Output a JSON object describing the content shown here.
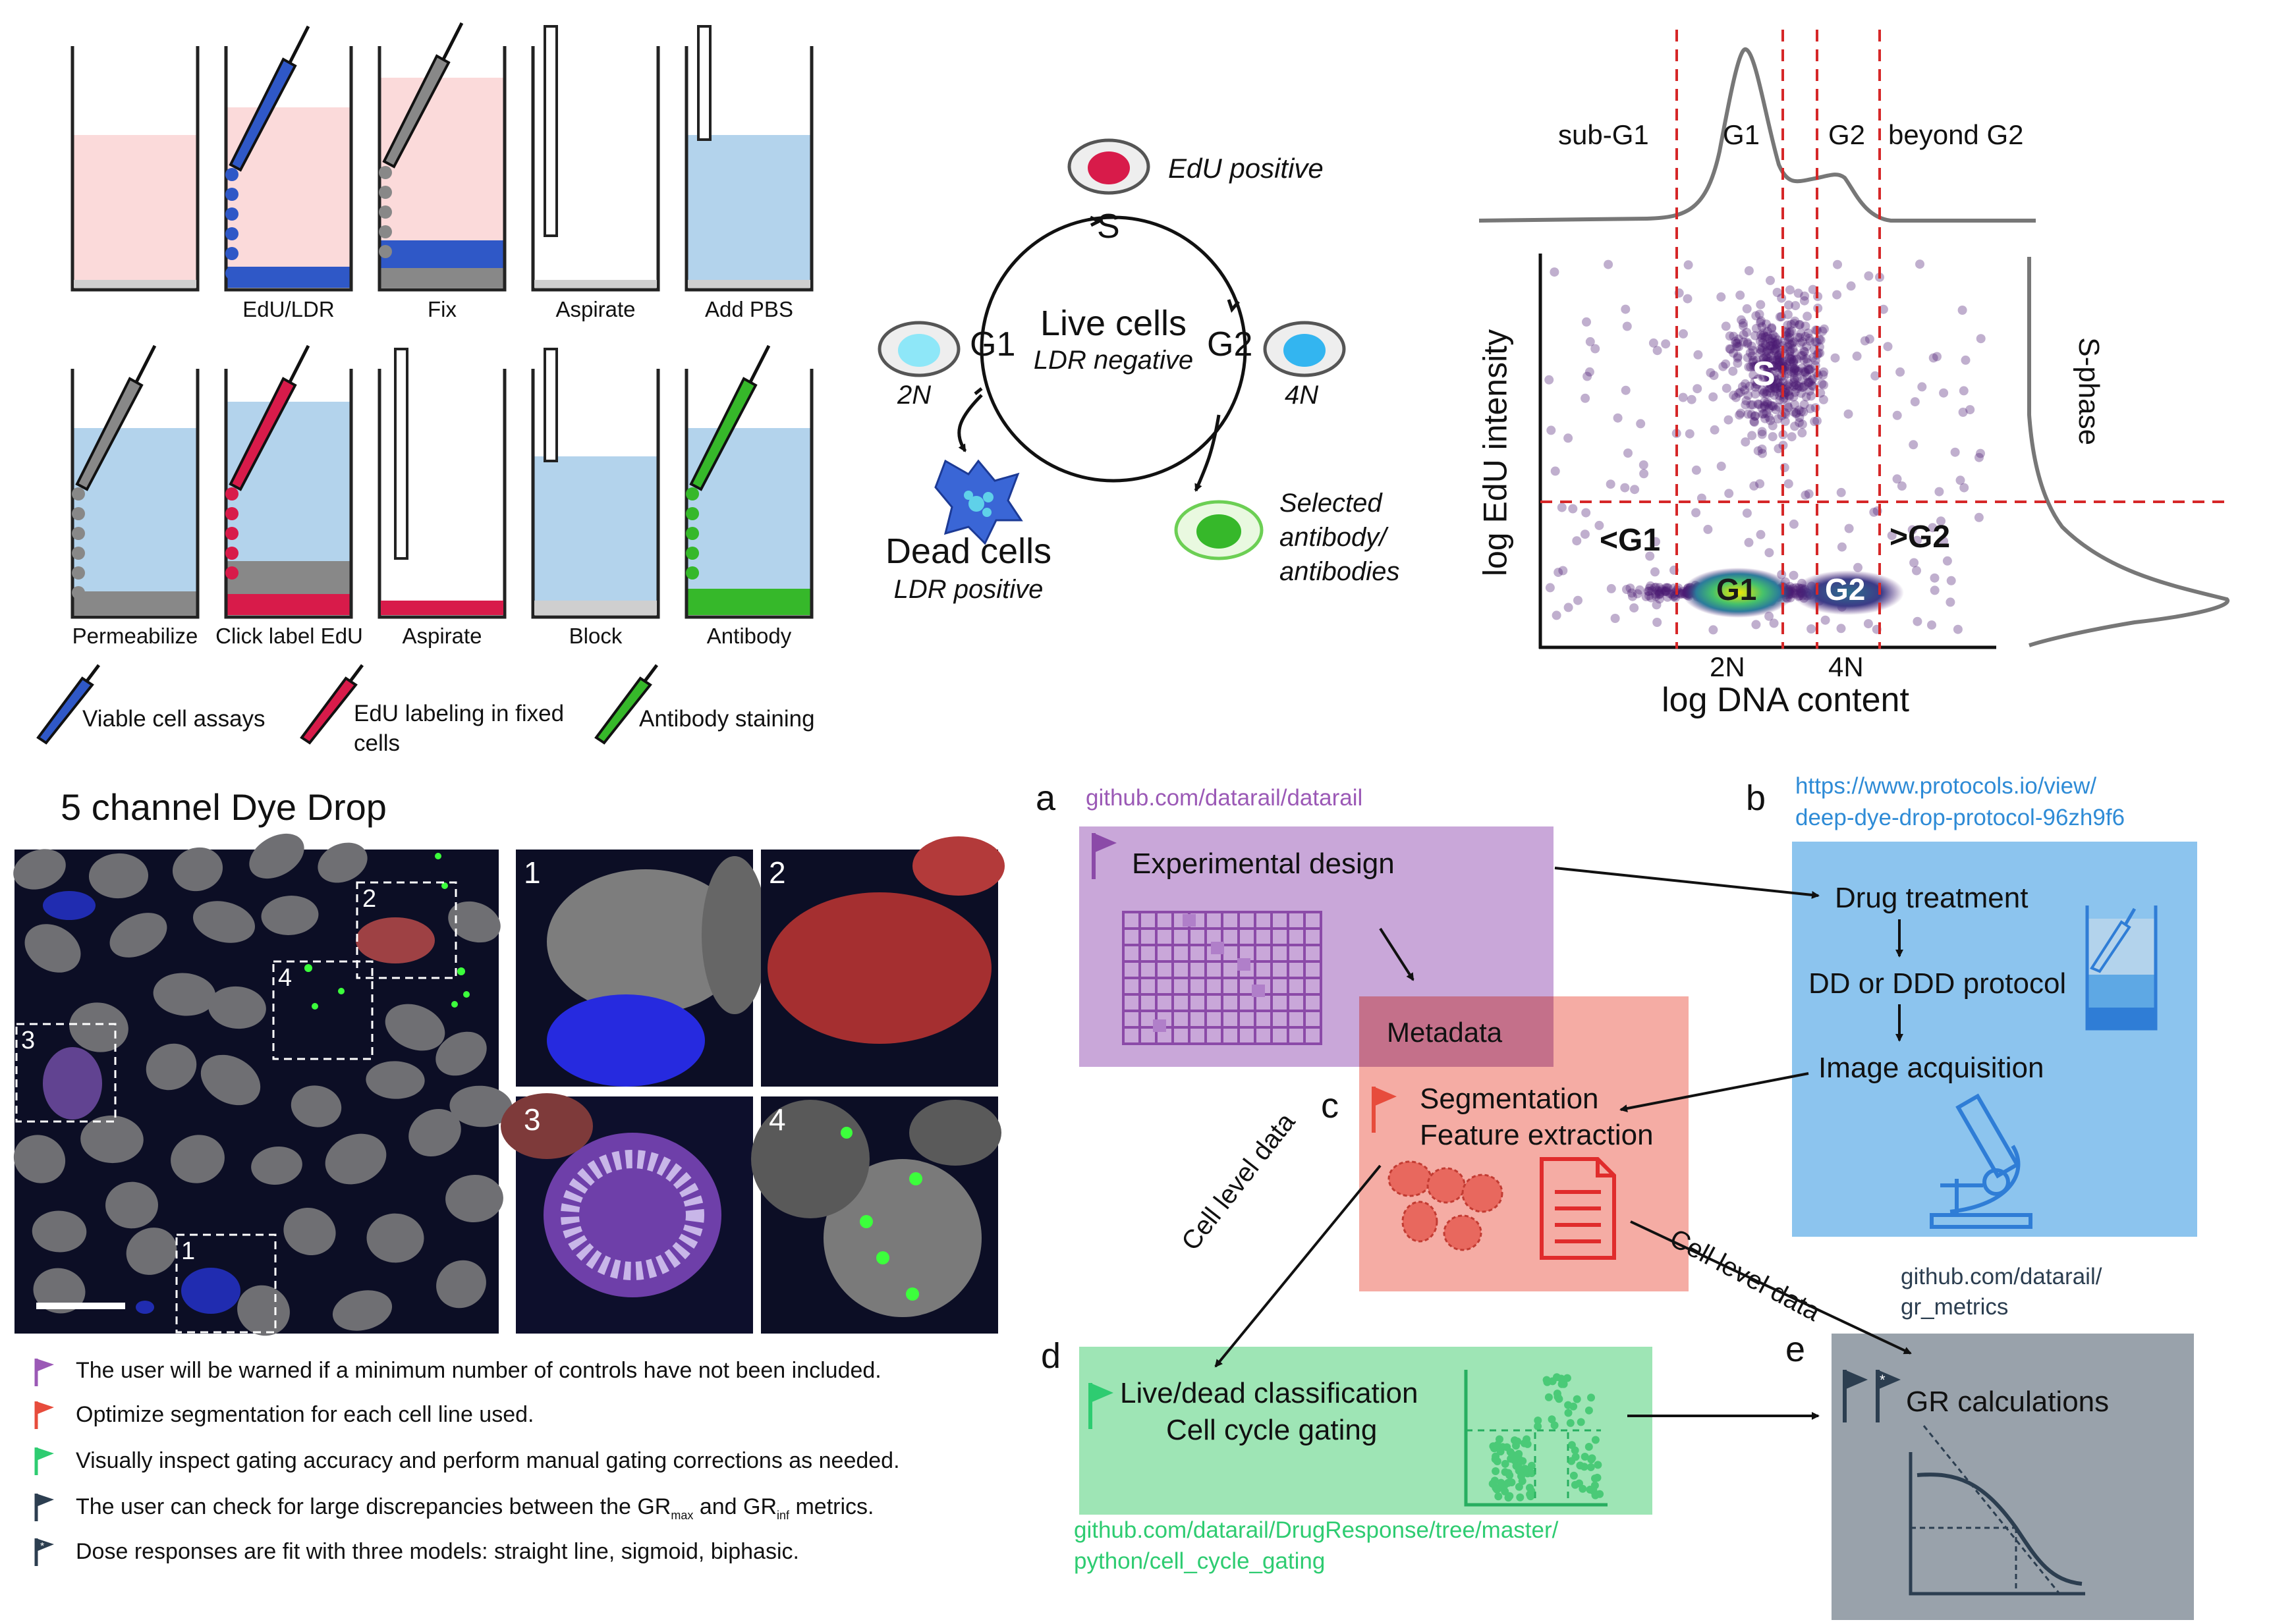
{
  "steps_row1": [
    "",
    "EdU/LDR",
    "Fix",
    "Aspirate",
    "Add PBS"
  ],
  "steps_row2": [
    "Permeabilize",
    "Click label EdU",
    "Aspirate",
    "Block",
    "Antibody"
  ],
  "legend_pipettes": [
    "Viable cell assays",
    "EdU labeling in fixed",
    "cells",
    "Antibody staining"
  ],
  "cycle": {
    "edu_positive": "EdU positive",
    "s": "S",
    "g1": "G1",
    "g2": "G2",
    "live_title": "Live cells",
    "live_sub": "LDR negative",
    "n2": "2N",
    "n4": "4N",
    "dead_title": "Dead cells",
    "dead_sub": "LDR positive",
    "selected_1": "Selected",
    "selected_2": "antibody/",
    "selected_3": "antibodies"
  },
  "flow": {
    "hist_labels": [
      "sub-G1",
      "G1",
      "G2",
      "beyond G2"
    ],
    "ylabel": "log EdU intensity",
    "xlabel": "log DNA content",
    "right_label": "S-phase",
    "tick_2n": "2N",
    "tick_4n": "4N",
    "region_s": "S",
    "region_g1": "G1",
    "region_g2": "G2",
    "region_lt_g1": "<G1",
    "region_gt_g2": ">G2"
  },
  "micro": {
    "title": "5 channel Dye Drop",
    "box_labels": [
      "1",
      "2",
      "3",
      "4"
    ],
    "panel_labels": [
      "1",
      "2",
      "3",
      "4"
    ]
  },
  "workflow": {
    "a": "a",
    "b": "b",
    "c": "c",
    "d": "d",
    "e": "e",
    "link_a": "github.com/datarail/datarail",
    "link_b1": "https://www.protocols.io/view/",
    "link_b2": "deep-dye-drop-protocol-96zh9f6",
    "design": "Experimental design",
    "metadata": "Metadata",
    "drug": "Drug treatment",
    "ddd": "DD or DDD protocol",
    "image": "Image acquisition",
    "seg1": "Segmentation",
    "seg2": "Feature extraction",
    "cell_level_1": "Cell level data",
    "cell_level_2": "Cell level data",
    "live1": "Live/dead classification",
    "live2": "Cell cycle gating",
    "link_d1": "github.com/datarail/DrugResponse/tree/master/",
    "link_d2": "python/cell_cycle_gating",
    "link_e1": "github.com/datarail/",
    "link_e2": "gr_metrics",
    "gr": "GR calculations",
    "colors": {
      "purple": "#c9a7d9",
      "red": "#f4a39a",
      "green": "#9ee5b5",
      "blue": "#8cc4ee",
      "gray": "#99a2ab"
    }
  },
  "notes": [
    {
      "text": "The user will be warned if a minimum number of controls have not been included.",
      "color": "#9b59b6"
    },
    {
      "text": "Optimize segmentation for each cell line used.",
      "color": "#e74c3c"
    },
    {
      "text": "Visually inspect gating accuracy and perform manual gating corrections as needed.",
      "color": "#2ecc71"
    },
    {
      "text": "The user can check for large discrepancies between the GR",
      "sub1": "max",
      "mid": " and GR",
      "sub2": "inf",
      "end": " metrics.",
      "color": "#2c3e50"
    },
    {
      "text": "Dose responses are fit with three models: straight line, sigmoid, biphasic.",
      "color": "#2c3e50"
    }
  ]
}
